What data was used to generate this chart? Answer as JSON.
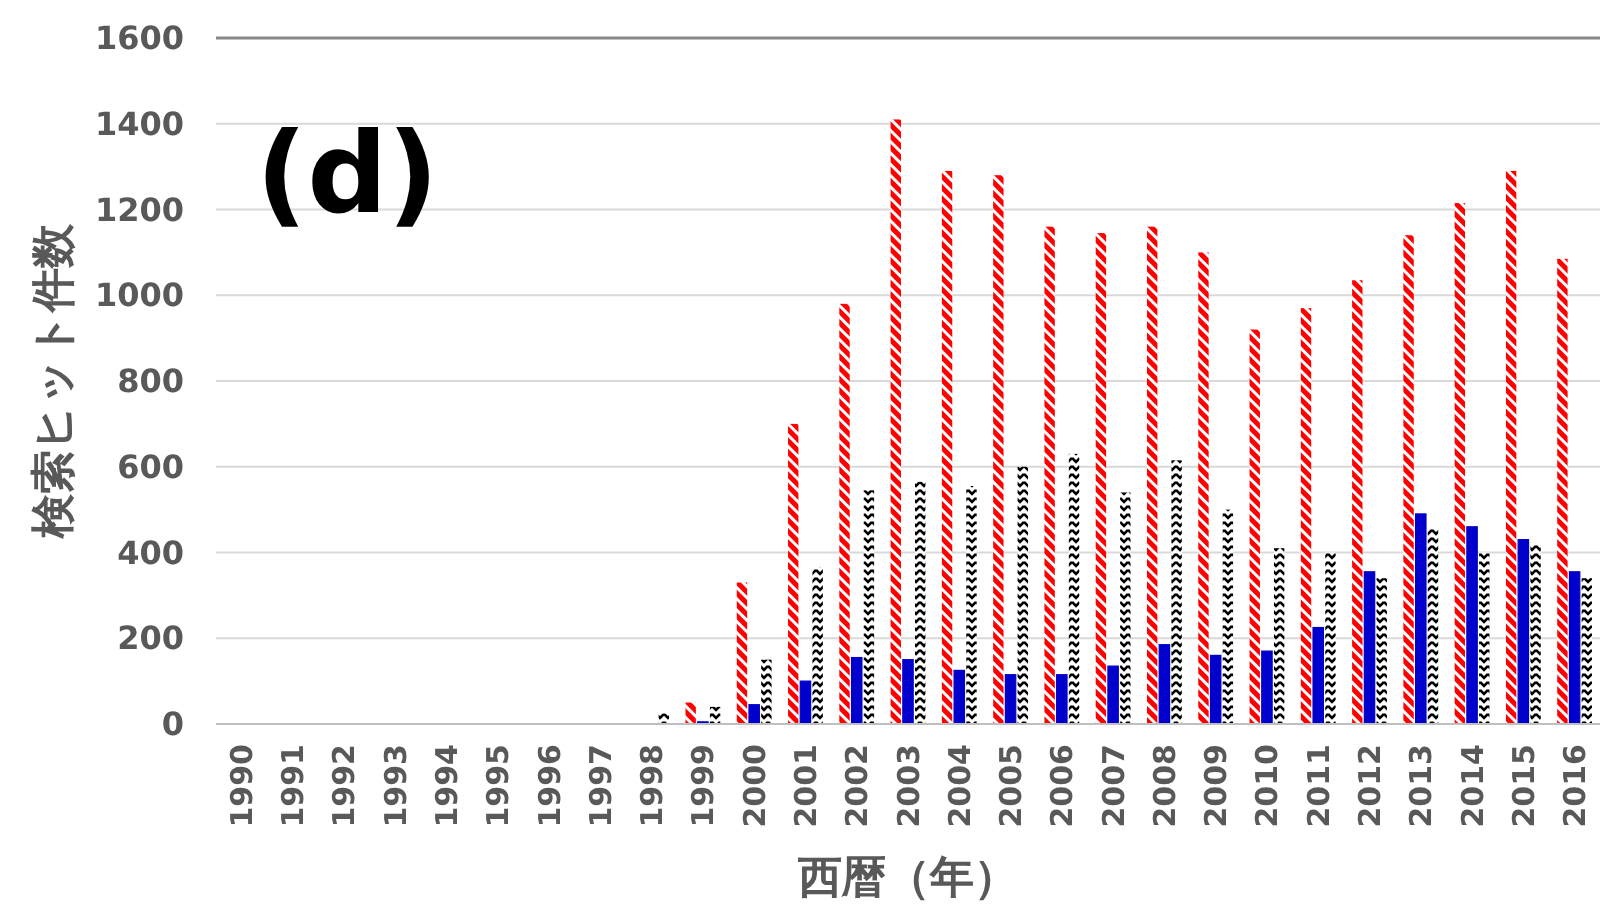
{
  "chart_data": {
    "type": "bar",
    "xlabel": "西暦（年）",
    "ylabel": "検索ヒット件数",
    "annotations": [
      "(d)"
    ],
    "categories": [
      "1990",
      "1991",
      "1992",
      "1993",
      "1994",
      "1995",
      "1996",
      "1997",
      "1998",
      "1999",
      "2000",
      "2001",
      "2002",
      "2003",
      "2004",
      "2005",
      "2006",
      "2007",
      "2008",
      "2009",
      "2010",
      "2011",
      "2012",
      "2013",
      "2014",
      "2015",
      "2016"
    ],
    "series": [
      {
        "color": "#ff0000",
        "values": [
          0,
          0,
          0,
          0,
          0,
          0,
          0,
          0,
          0,
          50,
          330,
          700,
          980,
          1410,
          1290,
          1280,
          1160,
          1145,
          1160,
          1100,
          920,
          970,
          1035,
          1140,
          1215,
          1290,
          1085
        ]
      },
      {
        "color": "#0000cc",
        "values": [
          0,
          0,
          0,
          0,
          0,
          0,
          0,
          0,
          0,
          5,
          45,
          100,
          155,
          150,
          125,
          115,
          115,
          135,
          185,
          160,
          170,
          225,
          355,
          490,
          460,
          430,
          355
        ]
      },
      {
        "color": "#000000",
        "values": [
          0,
          0,
          0,
          0,
          0,
          0,
          0,
          0,
          25,
          40,
          150,
          365,
          545,
          565,
          555,
          600,
          630,
          540,
          615,
          500,
          410,
          400,
          340,
          455,
          400,
          420,
          340
        ]
      }
    ],
    "ylim": [
      0,
      1600
    ],
    "yticks": [
      0,
      200,
      400,
      600,
      800,
      1000,
      1200,
      1400,
      1600
    ],
    "grid": "y"
  }
}
